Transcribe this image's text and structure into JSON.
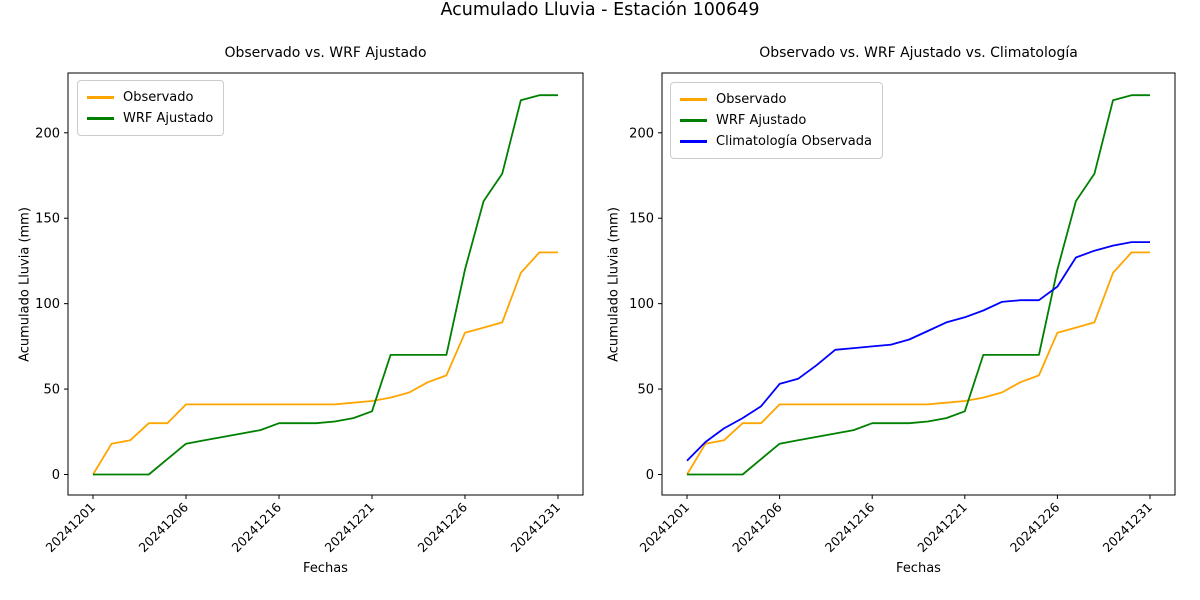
{
  "figure": {
    "suptitle": "Acumulado Lluvia - Estación 100649",
    "background": "#ffffff"
  },
  "chart_data": [
    {
      "type": "line",
      "title": "Observado vs. WRF Ajustado",
      "xlabel": "Fechas",
      "ylabel": "Acumulado Lluvia (mm)",
      "n_points": 26,
      "x_index": [
        0,
        1,
        2,
        3,
        4,
        5,
        6,
        7,
        8,
        9,
        10,
        11,
        12,
        13,
        14,
        15,
        16,
        17,
        18,
        19,
        20,
        21,
        22,
        23,
        24,
        25
      ],
      "xtick_indices": [
        0,
        5,
        10,
        15,
        20,
        25
      ],
      "xtick_labels": [
        "20241201",
        "20241206",
        "20241216",
        "20241221",
        "20241226",
        "20241231"
      ],
      "ytick_values": [
        0,
        50,
        100,
        150,
        200
      ],
      "ytick_labels": [
        "0",
        "50",
        "100",
        "150",
        "200"
      ],
      "ylim": [
        -12,
        235
      ],
      "grid": false,
      "legend_position": "upper-left",
      "series": [
        {
          "name": "Observado",
          "color": "#ffa500",
          "values": [
            0,
            18,
            20,
            30,
            30,
            41,
            41,
            41,
            41,
            41,
            41,
            41,
            41,
            41,
            42,
            43,
            45,
            48,
            54,
            58,
            83,
            86,
            89,
            118,
            130,
            130
          ]
        },
        {
          "name": "WRF Ajustado",
          "color": "#008000",
          "values": [
            0,
            0,
            0,
            0,
            9,
            18,
            20,
            22,
            24,
            26,
            30,
            30,
            30,
            31,
            33,
            37,
            70,
            70,
            70,
            70,
            120,
            160,
            176,
            219,
            222,
            222
          ]
        }
      ]
    },
    {
      "type": "line",
      "title": "Observado vs. WRF Ajustado vs. Climatología",
      "xlabel": "Fechas",
      "ylabel": "Acumulado Lluvia (mm)",
      "n_points": 26,
      "x_index": [
        0,
        1,
        2,
        3,
        4,
        5,
        6,
        7,
        8,
        9,
        10,
        11,
        12,
        13,
        14,
        15,
        16,
        17,
        18,
        19,
        20,
        21,
        22,
        23,
        24,
        25
      ],
      "xtick_indices": [
        0,
        5,
        10,
        15,
        20,
        25
      ],
      "xtick_labels": [
        "20241201",
        "20241206",
        "20241216",
        "20241221",
        "20241226",
        "20241231"
      ],
      "ytick_values": [
        0,
        50,
        100,
        150,
        200
      ],
      "ytick_labels": [
        "0",
        "50",
        "100",
        "150",
        "200"
      ],
      "ylim": [
        -12,
        235
      ],
      "grid": false,
      "legend_position": "upper-left",
      "series": [
        {
          "name": "Observado",
          "color": "#ffa500",
          "values": [
            0,
            18,
            20,
            30,
            30,
            41,
            41,
            41,
            41,
            41,
            41,
            41,
            41,
            41,
            42,
            43,
            45,
            48,
            54,
            58,
            83,
            86,
            89,
            118,
            130,
            130
          ]
        },
        {
          "name": "WRF Ajustado",
          "color": "#008000",
          "values": [
            0,
            0,
            0,
            0,
            9,
            18,
            20,
            22,
            24,
            26,
            30,
            30,
            30,
            31,
            33,
            37,
            70,
            70,
            70,
            70,
            120,
            160,
            176,
            219,
            222,
            222
          ]
        },
        {
          "name": "Climatología Observada",
          "color": "#0000ff",
          "values": [
            8,
            19,
            27,
            33,
            40,
            53,
            56,
            64,
            73,
            74,
            75,
            76,
            79,
            84,
            89,
            92,
            96,
            101,
            102,
            102,
            110,
            127,
            131,
            134,
            136,
            136
          ]
        }
      ]
    }
  ]
}
